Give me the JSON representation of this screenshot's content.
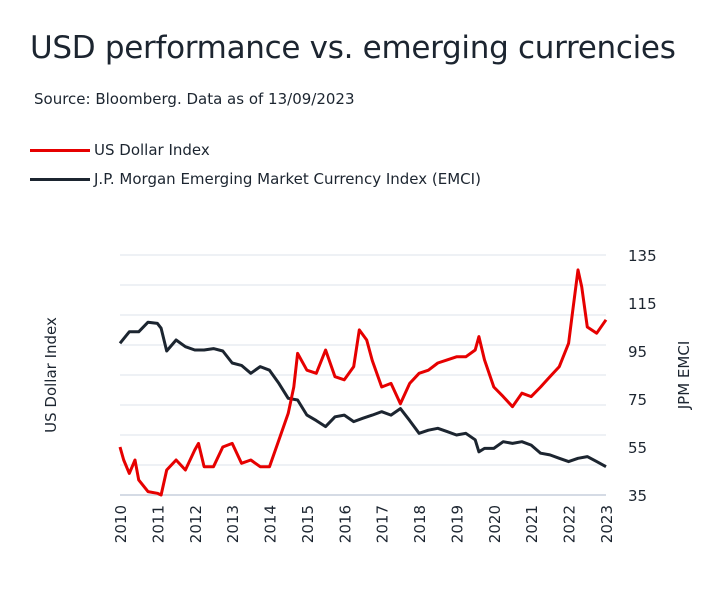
{
  "title": "USD performance vs. emerging currencies",
  "source": "Source: Bloomberg. Data as of 13/09/2023",
  "chart_data": {
    "type": "line",
    "title": "USD performance vs. emerging currencies",
    "ylabel_left": "US Dollar Index",
    "ylabel_right": "JPM EMCI",
    "xlim": [
      2010,
      2023
    ],
    "ylim": [
      35,
      135
    ],
    "x_ticks": [
      "2010",
      "2011",
      "2012",
      "2013",
      "2014",
      "2015",
      "2016",
      "2017",
      "2018",
      "2019",
      "2020",
      "2021",
      "2022",
      "2023"
    ],
    "y_ticks_right": [
      "135",
      "115",
      "95",
      "75",
      "55",
      "35"
    ],
    "grid": "horizontal",
    "legend_position": "top-left",
    "series": [
      {
        "name": "US Dollar Index",
        "color": "#e60000",
        "x": [
          2010.0,
          2010.1,
          2010.25,
          2010.4,
          2010.5,
          2010.75,
          2011.0,
          2011.1,
          2011.25,
          2011.5,
          2011.75,
          2012.0,
          2012.1,
          2012.25,
          2012.5,
          2012.75,
          2013.0,
          2013.25,
          2013.5,
          2013.75,
          2014.0,
          2014.25,
          2014.5,
          2014.65,
          2014.75,
          2015.0,
          2015.25,
          2015.5,
          2015.75,
          2016.0,
          2016.25,
          2016.4,
          2016.6,
          2016.75,
          2017.0,
          2017.25,
          2017.5,
          2017.75,
          2018.0,
          2018.25,
          2018.5,
          2018.75,
          2019.0,
          2019.25,
          2019.5,
          2019.6,
          2019.75,
          2020.0,
          2020.25,
          2020.5,
          2020.75,
          2021.0,
          2021.25,
          2021.5,
          2021.75,
          2022.0,
          2022.1,
          2022.25,
          2022.35,
          2022.5,
          2022.75,
          2023.0
        ],
        "values": [
          55,
          49.6,
          44,
          49.6,
          41.3,
          36.4,
          35.7,
          35,
          45.4,
          49.6,
          45.4,
          53.8,
          56.5,
          46.8,
          46.8,
          55,
          56.5,
          48.2,
          49.6,
          46.8,
          46.8,
          57.9,
          69,
          80,
          94,
          87,
          85.7,
          95.4,
          84.3,
          83,
          88.5,
          103.8,
          99.6,
          91,
          80,
          81.5,
          73,
          81.5,
          85.7,
          87,
          90,
          91.3,
          92.6,
          92.6,
          95.4,
          101,
          91.3,
          80,
          76,
          71.8,
          77.4,
          76,
          80,
          84.3,
          88.5,
          98.2,
          110.7,
          128.8,
          121.8,
          105,
          102.4,
          108
        ]
      },
      {
        "name": "J.P. Morgan Emerging Market Currency Index (EMCI)",
        "color": "#1c2530",
        "x": [
          2010.0,
          2010.25,
          2010.5,
          2010.75,
          2011.0,
          2011.1,
          2011.25,
          2011.5,
          2011.75,
          2012.0,
          2012.25,
          2012.5,
          2012.75,
          2013.0,
          2013.25,
          2013.5,
          2013.75,
          2014.0,
          2014.25,
          2014.5,
          2014.75,
          2015.0,
          2015.25,
          2015.5,
          2015.75,
          2016.0,
          2016.25,
          2016.5,
          2016.75,
          2017.0,
          2017.25,
          2017.5,
          2017.75,
          2018.0,
          2018.25,
          2018.5,
          2018.75,
          2019.0,
          2019.25,
          2019.5,
          2019.6,
          2019.75,
          2020.0,
          2020.25,
          2020.5,
          2020.75,
          2021.0,
          2021.25,
          2021.5,
          2021.75,
          2022.0,
          2022.25,
          2022.5,
          2022.75,
          2023.0
        ],
        "values": [
          98.2,
          103,
          103,
          107,
          106.5,
          104.5,
          95,
          99.6,
          96.8,
          95.4,
          95.4,
          96,
          95,
          90,
          89,
          85.7,
          88.5,
          87,
          81.5,
          75.3,
          74.6,
          68.3,
          66,
          63.5,
          67.6,
          68.3,
          65.6,
          67,
          68.3,
          69.7,
          68.3,
          71,
          66,
          60.7,
          62,
          62.8,
          61.4,
          60,
          60.7,
          58,
          53,
          54.4,
          54.4,
          57.2,
          56.5,
          57.2,
          55.8,
          52.4,
          51.7,
          50.3,
          48.9,
          50.3,
          51,
          48.9,
          46.8
        ]
      }
    ]
  }
}
